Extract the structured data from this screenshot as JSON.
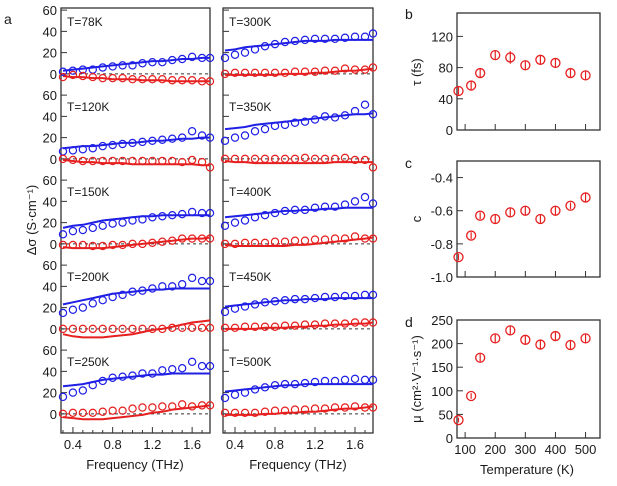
{
  "colors": {
    "real": "#1f1fe6",
    "imag": "#e61f1f",
    "marker_b": "#e61f1f",
    "axis": "#333333"
  },
  "chart_data": [
    {
      "panel": "a",
      "type": "scatter",
      "title": "",
      "xlabel": "Frequency (THz)",
      "ylabel": "Δσ (S·cm⁻¹)",
      "xlim": [
        0.28,
        1.78
      ],
      "ylim_per_subpanel": [
        -18,
        62
      ],
      "xticks": [
        "0.4",
        "0.8",
        "1.2",
        "1.6"
      ],
      "yticks": [
        "0",
        "20",
        "40",
        "60"
      ],
      "legend": "none",
      "x": [
        0.3,
        0.4,
        0.5,
        0.6,
        0.7,
        0.8,
        0.9,
        1.0,
        1.1,
        1.2,
        1.3,
        1.4,
        1.5,
        1.6,
        1.7,
        1.78
      ],
      "subpanels": [
        {
          "label": "T=78K",
          "column": 0,
          "real_points": [
            2,
            3,
            4,
            4,
            6,
            7,
            8,
            8,
            10,
            11,
            11,
            13,
            14,
            16,
            15,
            15
          ],
          "real_fit": [
            3,
            4,
            5,
            6,
            7,
            8,
            9,
            10,
            11,
            12,
            12,
            13,
            14,
            14,
            15,
            15
          ],
          "imag_points": [
            -3,
            -1,
            -2,
            -3,
            -4,
            -4,
            -4,
            -5,
            -5,
            -5,
            -5,
            -6,
            -6,
            -6,
            -7,
            -7
          ],
          "imag_fit": [
            -2,
            -3,
            -3,
            -4,
            -4,
            -5,
            -5,
            -5,
            -6,
            -6,
            -6,
            -7,
            -7,
            -7,
            -7,
            -7
          ]
        },
        {
          "label": "T=120K",
          "column": 0,
          "real_points": [
            7,
            8,
            9,
            10,
            12,
            13,
            14,
            15,
            16,
            17,
            18,
            19,
            20,
            26,
            22,
            20
          ],
          "real_fit": [
            10,
            11,
            12,
            12,
            13,
            14,
            15,
            15,
            16,
            17,
            17,
            18,
            19,
            19,
            20,
            20
          ],
          "imag_points": [
            0,
            -1,
            -2,
            -2,
            -2,
            -2,
            -2,
            -2,
            -2,
            -2,
            -2,
            -2,
            -3,
            -1,
            -3,
            -8
          ],
          "imag_fit": [
            -1,
            -2,
            -3,
            -3,
            -4,
            -4,
            -4,
            -5,
            -5,
            -5,
            -5,
            -5,
            -5,
            -5,
            -6,
            -6
          ]
        },
        {
          "label": "T=150K",
          "column": 0,
          "real_points": [
            9,
            12,
            13,
            15,
            17,
            19,
            20,
            22,
            23,
            25,
            26,
            27,
            28,
            30,
            29,
            29
          ],
          "real_fit": [
            15,
            17,
            18,
            20,
            22,
            23,
            24,
            25,
            26,
            26,
            27,
            27,
            27,
            27,
            27,
            27
          ],
          "imag_points": [
            -1,
            -1,
            -1,
            -2,
            -2,
            -1,
            -1,
            0,
            0,
            1,
            2,
            3,
            5,
            5,
            5,
            5
          ],
          "imag_fit": [
            -3,
            -4,
            -4,
            -4,
            -4,
            -3,
            -2,
            -1,
            0,
            1,
            2,
            3,
            4,
            5,
            5,
            6
          ]
        },
        {
          "label": "T=200K",
          "column": 0,
          "real_points": [
            15,
            18,
            20,
            24,
            27,
            30,
            32,
            35,
            36,
            38,
            40,
            40,
            42,
            48,
            45,
            45
          ],
          "real_fit": [
            23,
            25,
            27,
            29,
            31,
            33,
            34,
            35,
            36,
            37,
            37,
            38,
            38,
            38,
            38,
            38
          ],
          "imag_points": [
            0,
            0,
            0,
            0,
            0,
            0,
            0,
            0,
            0,
            0,
            0,
            1,
            1,
            1,
            1,
            1
          ],
          "imag_fit": [
            -5,
            -7,
            -8,
            -8,
            -8,
            -7,
            -6,
            -5,
            -3,
            -1,
            0,
            2,
            4,
            6,
            7,
            8
          ]
        },
        {
          "label": "T=250K",
          "column": 0,
          "real_points": [
            16,
            20,
            22,
            27,
            31,
            34,
            35,
            36,
            38,
            38,
            41,
            42,
            43,
            49,
            45,
            45
          ],
          "real_fit": [
            26,
            27,
            28,
            30,
            32,
            33,
            34,
            35,
            36,
            37,
            37,
            38,
            38,
            38,
            38,
            38
          ],
          "imag_points": [
            0,
            1,
            1,
            1,
            2,
            3,
            3,
            5,
            6,
            6,
            7,
            7,
            9,
            7,
            8,
            8
          ],
          "imag_fit": [
            -3,
            -4,
            -5,
            -5,
            -5,
            -4,
            -3,
            -2,
            -1,
            1,
            2,
            4,
            5,
            6,
            7,
            8
          ]
        },
        {
          "label": "T=300K",
          "column": 1,
          "real_points": [
            15,
            18,
            20,
            23,
            26,
            28,
            30,
            31,
            32,
            33,
            33,
            33,
            34,
            35,
            35,
            38
          ],
          "real_fit": [
            22,
            23,
            25,
            26,
            27,
            28,
            29,
            30,
            31,
            31,
            31,
            32,
            32,
            32,
            32,
            32
          ],
          "imag_points": [
            0,
            1,
            1,
            1,
            1,
            1,
            1,
            2,
            2,
            2,
            3,
            3,
            5,
            4,
            4,
            6
          ],
          "imag_fit": [
            -1,
            -1,
            -1,
            -1,
            -1,
            -1,
            0,
            0,
            0,
            1,
            1,
            2,
            3,
            3,
            4,
            5
          ]
        },
        {
          "label": "T=350K",
          "column": 1,
          "real_points": [
            17,
            20,
            22,
            26,
            28,
            31,
            32,
            34,
            35,
            37,
            40,
            39,
            41,
            45,
            51,
            42
          ],
          "real_fit": [
            28,
            29,
            30,
            32,
            33,
            34,
            35,
            36,
            37,
            38,
            39,
            40,
            41,
            42,
            42,
            43
          ],
          "imag_points": [
            0,
            0,
            0,
            0,
            0,
            0,
            0,
            0,
            1,
            0,
            0,
            0,
            1,
            -1,
            -1,
            -8
          ],
          "imag_fit": [
            -2,
            -3,
            -3,
            -4,
            -4,
            -4,
            -4,
            -4,
            -4,
            -4,
            -4,
            -3,
            -3,
            -3,
            -3,
            -3
          ]
        },
        {
          "label": "T=400K",
          "column": 1,
          "real_points": [
            17,
            20,
            22,
            25,
            27,
            29,
            31,
            32,
            32,
            34,
            35,
            35,
            37,
            40,
            44,
            38
          ],
          "real_fit": [
            25,
            26,
            27,
            28,
            29,
            30,
            31,
            31,
            32,
            32,
            33,
            33,
            34,
            34,
            34,
            34
          ],
          "imag_points": [
            0,
            0,
            1,
            1,
            1,
            2,
            2,
            3,
            3,
            4,
            4,
            5,
            5,
            7,
            5,
            5
          ],
          "imag_fit": [
            -1,
            -2,
            -2,
            -2,
            -2,
            -2,
            -2,
            -1,
            -1,
            0,
            1,
            2,
            3,
            4,
            5,
            6
          ]
        },
        {
          "label": "T=450K",
          "column": 1,
          "real_points": [
            16,
            19,
            21,
            23,
            25,
            26,
            27,
            28,
            28,
            29,
            30,
            30,
            31,
            31,
            32,
            32
          ],
          "real_fit": [
            21,
            22,
            23,
            24,
            25,
            26,
            27,
            27,
            28,
            28,
            28,
            29,
            29,
            29,
            29,
            29
          ],
          "imag_points": [
            1,
            1,
            2,
            2,
            2,
            2,
            3,
            3,
            4,
            4,
            5,
            5,
            5,
            6,
            6,
            6
          ],
          "imag_fit": [
            0,
            0,
            0,
            0,
            1,
            1,
            1,
            2,
            2,
            3,
            3,
            4,
            4,
            5,
            5,
            6
          ]
        },
        {
          "label": "T=500K",
          "column": 1,
          "real_points": [
            15,
            18,
            20,
            23,
            25,
            27,
            28,
            28,
            29,
            30,
            31,
            31,
            32,
            33,
            32,
            32
          ],
          "real_fit": [
            21,
            22,
            23,
            24,
            25,
            26,
            27,
            27,
            28,
            28,
            28,
            28,
            28,
            28,
            28,
            28
          ],
          "imag_points": [
            1,
            1,
            1,
            1,
            2,
            3,
            3,
            4,
            4,
            5,
            5,
            6,
            6,
            7,
            6,
            6
          ],
          "imag_fit": [
            -1,
            -1,
            -1,
            -1,
            0,
            0,
            1,
            1,
            2,
            2,
            3,
            4,
            5,
            5,
            6,
            7
          ]
        }
      ]
    },
    {
      "panel": "b",
      "type": "scatter",
      "title": "",
      "xlabel": "",
      "ylabel": "τ (fs)",
      "xlim": [
        73,
        548
      ],
      "ylim": [
        0,
        150
      ],
      "yticks": [
        "0",
        "40",
        "80",
        "120"
      ],
      "x": [
        78,
        120,
        150,
        200,
        250,
        300,
        350,
        400,
        450,
        500
      ],
      "values": [
        50,
        57,
        73,
        96,
        93,
        83,
        90,
        86,
        73,
        70
      ],
      "errors": [
        5,
        5,
        6,
        6,
        8,
        6,
        6,
        6,
        6,
        6
      ],
      "legend": "none"
    },
    {
      "panel": "c",
      "type": "scatter",
      "title": "",
      "xlabel": "",
      "ylabel": "c",
      "xlim": [
        73,
        548
      ],
      "ylim": [
        -1.0,
        -0.3
      ],
      "yticks": [
        "-1.0",
        "-0.8",
        "-0.6",
        "-0.4"
      ],
      "x": [
        78,
        120,
        150,
        200,
        250,
        300,
        350,
        400,
        450,
        500
      ],
      "values": [
        -0.88,
        -0.75,
        -0.63,
        -0.65,
        -0.61,
        -0.6,
        -0.65,
        -0.6,
        -0.57,
        -0.52
      ],
      "errors": [
        0.02,
        0.02,
        0.02,
        0.03,
        0.03,
        0.03,
        0.03,
        0.03,
        0.02,
        0.03
      ],
      "legend": "none"
    },
    {
      "panel": "d",
      "type": "scatter",
      "title": "",
      "xlabel": "Temperature (K)",
      "ylabel": "μ (cm²·V⁻¹·s⁻¹)",
      "xlim": [
        73,
        548
      ],
      "ylim": [
        0,
        250
      ],
      "xticks": [
        "100",
        "200",
        "300",
        "400",
        "500"
      ],
      "yticks": [
        "0",
        "50",
        "100",
        "150",
        "200",
        "250"
      ],
      "x": [
        78,
        120,
        150,
        200,
        250,
        300,
        350,
        400,
        450,
        500
      ],
      "values": [
        38,
        89,
        170,
        211,
        228,
        208,
        198,
        216,
        197,
        211
      ],
      "errors": [
        5,
        6,
        8,
        9,
        10,
        9,
        9,
        9,
        9,
        10
      ],
      "legend": "none"
    }
  ],
  "labels": {
    "panel_a": "a",
    "panel_b": "b",
    "panel_c": "c",
    "panel_d": "d",
    "freq_xlabel": "Frequency (THz)",
    "temp_xlabel": "Temperature (K)",
    "dsigma_ylabel": "Δσ (S·cm⁻¹)",
    "tau_ylabel": "τ (fs)",
    "c_ylabel": "c",
    "mu_ylabel": "μ (cm²·V⁻¹·s⁻¹)"
  }
}
